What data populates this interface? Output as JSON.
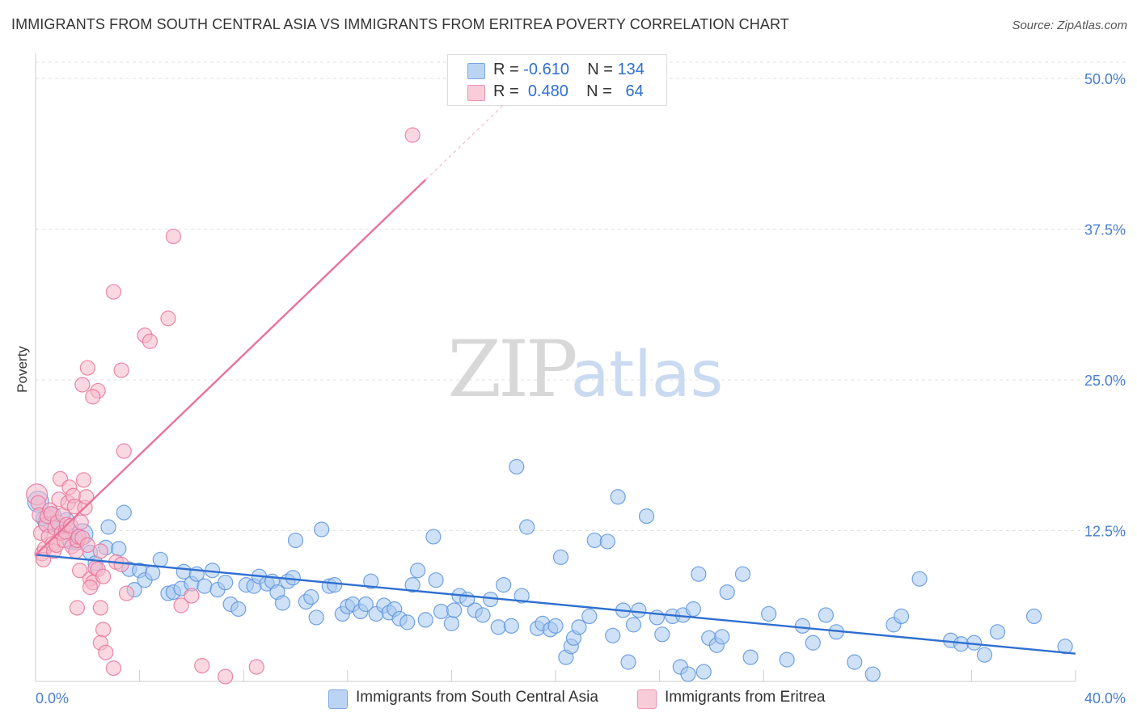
{
  "title": "IMMIGRANTS FROM SOUTH CENTRAL ASIA VS IMMIGRANTS FROM ERITREA POVERTY CORRELATION CHART",
  "source": "Source: ZipAtlas.com",
  "watermark": {
    "zip": "ZIP",
    "atlas": "atlas"
  },
  "legend": [
    {
      "r_label": "R =",
      "r_value": "-0.610",
      "n_label": "N =",
      "n_value": "134",
      "color": "#a8c8f0"
    },
    {
      "r_label": "R =",
      "r_value": "0.480",
      "n_label": "N =",
      "n_value": "64",
      "color": "#f6b8cb"
    }
  ],
  "chart_data": {
    "type": "scatter",
    "title": "IMMIGRANTS FROM SOUTH CENTRAL ASIA VS IMMIGRANTS FROM ERITREA POVERTY CORRELATION CHART",
    "xlabel": "",
    "ylabel": "Poverty",
    "xlim": [
      0,
      40
    ],
    "ylim": [
      0,
      50
    ],
    "x_tick_labels": [
      "0.0%",
      "40.0%"
    ],
    "y_tick_labels": [
      "12.5%",
      "25.0%",
      "37.5%",
      "50.0%"
    ],
    "y_ticks": [
      12.5,
      25.0,
      37.5,
      50.0
    ],
    "grid": true,
    "legend_position": "top-center",
    "series": [
      {
        "name": "Immigrants from South Central Asia",
        "color": "#5b93dd",
        "fill": "#a8c8f0",
        "r": -0.61,
        "n": 134,
        "trend": {
          "x": [
            0,
            40
          ],
          "y": [
            10.5,
            2.3
          ]
        },
        "points": [
          [
            0.1,
            14.9
          ],
          [
            0.3,
            13.5
          ],
          [
            0.5,
            13.2
          ],
          [
            0.7,
            13.8
          ],
          [
            0.9,
            12.9
          ],
          [
            1.2,
            13.4
          ],
          [
            1.4,
            11.8
          ],
          [
            1.6,
            11.5
          ],
          [
            1.8,
            12.2
          ],
          [
            2.1,
            10.7
          ],
          [
            2.3,
            9.8
          ],
          [
            2.8,
            12.8
          ],
          [
            2.7,
            11.1
          ],
          [
            3.2,
            11.0
          ],
          [
            3.4,
            14.0
          ],
          [
            3.6,
            9.3
          ],
          [
            3.8,
            7.6
          ],
          [
            4.0,
            9.2
          ],
          [
            4.2,
            8.4
          ],
          [
            4.5,
            9.0
          ],
          [
            4.8,
            10.1
          ],
          [
            5.1,
            7.3
          ],
          [
            5.3,
            7.4
          ],
          [
            5.6,
            7.7
          ],
          [
            5.7,
            9.1
          ],
          [
            6.0,
            8.1
          ],
          [
            6.2,
            8.9
          ],
          [
            6.5,
            7.9
          ],
          [
            6.8,
            9.2
          ],
          [
            7.0,
            7.6
          ],
          [
            7.3,
            8.2
          ],
          [
            7.5,
            6.4
          ],
          [
            7.8,
            6.0
          ],
          [
            8.1,
            8.0
          ],
          [
            8.4,
            7.9
          ],
          [
            8.6,
            8.7
          ],
          [
            8.9,
            8.1
          ],
          [
            9.1,
            8.3
          ],
          [
            9.3,
            7.4
          ],
          [
            9.5,
            6.5
          ],
          [
            9.7,
            8.3
          ],
          [
            9.9,
            8.6
          ],
          [
            10.0,
            11.7
          ],
          [
            10.4,
            6.6
          ],
          [
            10.6,
            7.0
          ],
          [
            10.8,
            5.3
          ],
          [
            11.0,
            12.6
          ],
          [
            11.3,
            7.9
          ],
          [
            11.5,
            8.0
          ],
          [
            11.8,
            5.6
          ],
          [
            12.0,
            6.2
          ],
          [
            12.2,
            6.4
          ],
          [
            12.5,
            5.8
          ],
          [
            12.7,
            6.4
          ],
          [
            12.9,
            8.3
          ],
          [
            13.1,
            5.6
          ],
          [
            13.4,
            6.3
          ],
          [
            13.6,
            5.7
          ],
          [
            13.8,
            6.0
          ],
          [
            14.0,
            5.2
          ],
          [
            14.3,
            4.9
          ],
          [
            14.5,
            8.0
          ],
          [
            14.7,
            9.2
          ],
          [
            15.0,
            5.1
          ],
          [
            15.3,
            12.0
          ],
          [
            15.4,
            8.4
          ],
          [
            15.6,
            5.8
          ],
          [
            16.0,
            4.8
          ],
          [
            16.1,
            5.9
          ],
          [
            16.3,
            7.1
          ],
          [
            16.6,
            6.8
          ],
          [
            16.9,
            5.9
          ],
          [
            17.2,
            5.5
          ],
          [
            17.5,
            6.8
          ],
          [
            17.8,
            4.5
          ],
          [
            18.0,
            8.0
          ],
          [
            18.3,
            4.6
          ],
          [
            18.5,
            17.8
          ],
          [
            18.7,
            7.1
          ],
          [
            18.9,
            12.8
          ],
          [
            19.3,
            4.4
          ],
          [
            19.5,
            4.8
          ],
          [
            19.8,
            4.3
          ],
          [
            20.0,
            4.6
          ],
          [
            20.2,
            10.3
          ],
          [
            20.4,
            2.0
          ],
          [
            20.6,
            2.9
          ],
          [
            20.7,
            3.6
          ],
          [
            20.9,
            4.5
          ],
          [
            21.3,
            5.4
          ],
          [
            21.5,
            11.7
          ],
          [
            22.0,
            11.6
          ],
          [
            22.2,
            3.8
          ],
          [
            22.4,
            15.3
          ],
          [
            22.6,
            5.9
          ],
          [
            22.8,
            1.6
          ],
          [
            23.0,
            4.7
          ],
          [
            23.2,
            5.9
          ],
          [
            23.5,
            13.7
          ],
          [
            23.9,
            5.3
          ],
          [
            24.1,
            3.9
          ],
          [
            24.5,
            5.4
          ],
          [
            24.8,
            1.2
          ],
          [
            24.9,
            5.5
          ],
          [
            25.1,
            0.6
          ],
          [
            25.3,
            6.0
          ],
          [
            25.5,
            8.9
          ],
          [
            25.7,
            0.8
          ],
          [
            25.9,
            3.6
          ],
          [
            26.2,
            3.0
          ],
          [
            26.4,
            3.7
          ],
          [
            26.6,
            7.4
          ],
          [
            27.2,
            8.9
          ],
          [
            27.5,
            2.0
          ],
          [
            28.2,
            5.6
          ],
          [
            28.9,
            1.8
          ],
          [
            29.5,
            4.6
          ],
          [
            29.9,
            3.2
          ],
          [
            30.4,
            5.5
          ],
          [
            30.8,
            4.1
          ],
          [
            31.5,
            1.6
          ],
          [
            32.2,
            0.6
          ],
          [
            33.0,
            4.7
          ],
          [
            33.3,
            5.4
          ],
          [
            34.0,
            8.5
          ],
          [
            35.2,
            3.4
          ],
          [
            35.6,
            3.1
          ],
          [
            36.1,
            3.2
          ],
          [
            36.5,
            2.2
          ],
          [
            37.0,
            4.1
          ],
          [
            38.4,
            5.4
          ],
          [
            39.6,
            2.9
          ]
        ]
      },
      {
        "name": "Immigrants from Eritrea",
        "color": "#e8739a",
        "fill": "#f6b8cb",
        "r": 0.48,
        "n": 64,
        "trend": {
          "x": [
            0,
            15
          ],
          "y": [
            10.5,
            41.6
          ]
        },
        "trend_dashed": {
          "x": [
            15,
            18
          ],
          "y": [
            41.6,
            47.8
          ]
        },
        "points": [
          [
            0.05,
            15.5
          ],
          [
            0.1,
            14.8
          ],
          [
            0.15,
            13.8
          ],
          [
            0.2,
            12.3
          ],
          [
            0.25,
            10.6
          ],
          [
            0.3,
            10.1
          ],
          [
            0.35,
            11.0
          ],
          [
            0.4,
            13.0
          ],
          [
            0.45,
            13.7
          ],
          [
            0.5,
            12.0
          ],
          [
            0.55,
            14.2
          ],
          [
            0.6,
            13.9
          ],
          [
            0.65,
            11.4
          ],
          [
            0.7,
            10.8
          ],
          [
            0.75,
            12.7
          ],
          [
            0.8,
            11.3
          ],
          [
            0.85,
            13.2
          ],
          [
            0.9,
            15.1
          ],
          [
            0.95,
            16.8
          ],
          [
            1.0,
            12.3
          ],
          [
            1.05,
            13.8
          ],
          [
            1.1,
            11.7
          ],
          [
            1.15,
            12.4
          ],
          [
            1.2,
            13.0
          ],
          [
            1.25,
            14.8
          ],
          [
            1.3,
            16.1
          ],
          [
            1.35,
            12.9
          ],
          [
            1.4,
            11.2
          ],
          [
            1.45,
            15.4
          ],
          [
            1.5,
            14.5
          ],
          [
            1.55,
            10.8
          ],
          [
            1.6,
            11.7
          ],
          [
            1.65,
            12.0
          ],
          [
            1.7,
            9.2
          ],
          [
            1.75,
            13.2
          ],
          [
            1.8,
            11.9
          ],
          [
            1.85,
            16.7
          ],
          [
            1.9,
            14.4
          ],
          [
            1.95,
            15.3
          ],
          [
            2.0,
            11.3
          ],
          [
            2.1,
            8.5
          ],
          [
            2.2,
            8.2
          ],
          [
            2.3,
            9.4
          ],
          [
            2.4,
            9.3
          ],
          [
            2.5,
            10.8
          ],
          [
            2.6,
            8.7
          ],
          [
            2.1,
            7.8
          ],
          [
            2.5,
            6.1
          ],
          [
            1.6,
            6.1
          ],
          [
            2.6,
            4.3
          ],
          [
            2.5,
            3.2
          ],
          [
            3.0,
            1.1
          ],
          [
            2.7,
            2.4
          ],
          [
            3.1,
            9.9
          ],
          [
            3.3,
            9.7
          ],
          [
            3.5,
            7.3
          ],
          [
            2.0,
            26.0
          ],
          [
            1.8,
            24.6
          ],
          [
            2.4,
            24.1
          ],
          [
            2.2,
            23.6
          ],
          [
            3.3,
            25.8
          ],
          [
            3.0,
            32.3
          ],
          [
            3.4,
            19.1
          ],
          [
            4.2,
            28.7
          ],
          [
            4.4,
            28.2
          ],
          [
            5.1,
            30.1
          ],
          [
            5.3,
            36.9
          ],
          [
            5.6,
            6.3
          ],
          [
            6.0,
            7.1
          ],
          [
            6.4,
            1.3
          ],
          [
            7.3,
            0.4
          ],
          [
            8.5,
            1.2
          ],
          [
            14.5,
            45.3
          ]
        ]
      }
    ]
  },
  "bottom_legend": [
    {
      "label": "Immigrants from South Central Asia",
      "color": "#a8c8f0"
    },
    {
      "label": "Immigrants from Eritrea",
      "color": "#f6b8cb"
    }
  ]
}
